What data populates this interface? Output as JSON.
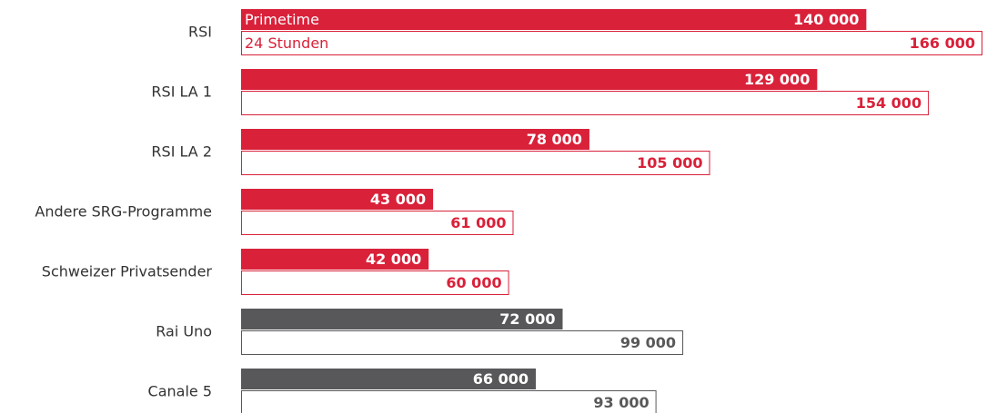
{
  "chart_data": {
    "type": "bar",
    "orientation": "horizontal",
    "categories": [
      "RSI",
      "RSI LA 1",
      "RSI LA 2",
      "Andere SRG-Programme",
      "Schweizer Privatsender",
      "Rai Uno",
      "Canale 5"
    ],
    "category_colors": [
      "#d9213a",
      "#d9213a",
      "#d9213a",
      "#d9213a",
      "#d9213a",
      "#58585a",
      "#58585a"
    ],
    "series": [
      {
        "name": "Primetime",
        "style": "filled",
        "values": [
          140000,
          129000,
          78000,
          43000,
          42000,
          72000,
          66000
        ],
        "value_labels": [
          "140 000",
          "129 000",
          "78 000",
          "43 000",
          "42 000",
          "72 000",
          "66 000"
        ]
      },
      {
        "name": "24 Stunden",
        "style": "outline",
        "values": [
          166000,
          154000,
          105000,
          61000,
          60000,
          99000,
          93000
        ],
        "value_labels": [
          "166 000",
          "154 000",
          "105 000",
          "61 000",
          "60 000",
          "99 000",
          "93 000"
        ]
      }
    ],
    "xlim": [
      0,
      166000
    ]
  }
}
